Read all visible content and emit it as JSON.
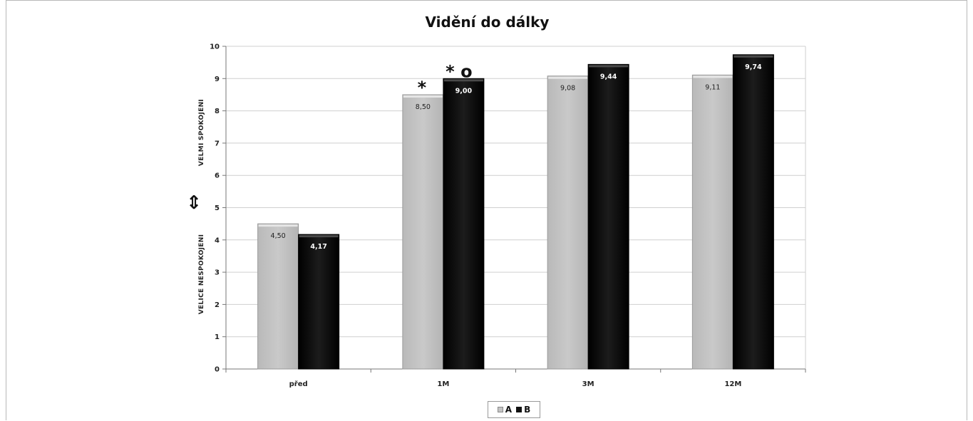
{
  "chart_data": {
    "type": "bar",
    "title": "Vidění do dálky",
    "categories": [
      "před",
      "1M",
      "3M",
      "12M"
    ],
    "series": [
      {
        "name": "A",
        "values": [
          4.5,
          8.5,
          9.08,
          9.11
        ],
        "labels": [
          "4,50",
          "8,50",
          "9,08",
          "9,11"
        ],
        "color": "#c4c4c4"
      },
      {
        "name": "B",
        "values": [
          4.17,
          9.0,
          9.44,
          9.74
        ],
        "labels": [
          "4,17",
          "9,00",
          "9,44",
          "9,74"
        ],
        "color": "#111111"
      }
    ],
    "ylim": [
      0,
      10
    ],
    "yticks": [
      "0",
      "1",
      "2",
      "3",
      "4",
      "5",
      "6",
      "7",
      "8",
      "9",
      "10"
    ],
    "ylabel_top": "VELMI  SPOKOJENI",
    "ylabel_bottom": "VELICE  NESPOKOJENI",
    "ylabel_symbol": "⇕",
    "annotations": [
      {
        "category": "1M",
        "series": "A",
        "text": "*"
      },
      {
        "category": "1M",
        "series": "B",
        "text": "* o"
      }
    ],
    "grid": true,
    "legend": {
      "position": "bottom",
      "items": [
        {
          "label": "A"
        },
        {
          "label": "B"
        }
      ]
    }
  }
}
